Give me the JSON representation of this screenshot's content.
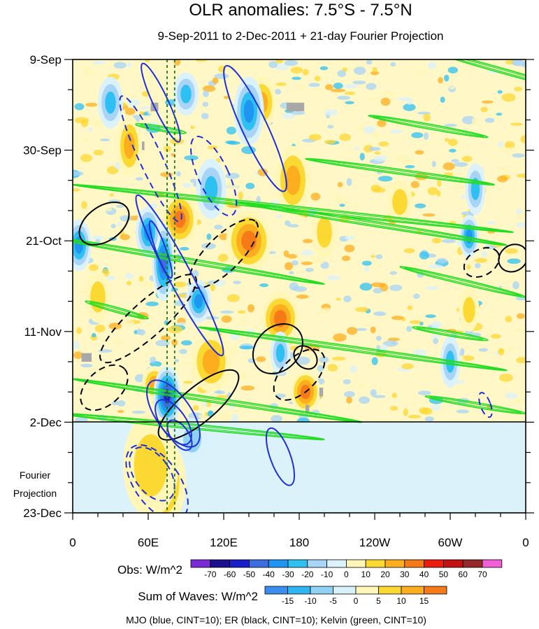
{
  "chart_data": {
    "type": "heatmap",
    "title": "OLR anomalies: 7.5°S - 7.5°N",
    "subtitle": "9-Sep-2011 to 2-Dec-2011 + 21-day Fourier Projection",
    "y_axis": {
      "ticks": [
        "9-Sep",
        "30-Sep",
        "21-Oct",
        "11-Nov",
        "2-Dec",
        "23-Dec"
      ],
      "range_days": [
        0,
        105
      ],
      "tick_days": [
        0,
        21,
        42,
        63,
        84,
        105
      ],
      "minor_every_days": 7
    },
    "x_axis": {
      "ticks": [
        "0",
        "60E",
        "120E",
        "180",
        "120W",
        "60W",
        "0"
      ],
      "tick_lon": [
        0,
        60,
        120,
        180,
        240,
        300,
        360
      ],
      "range_lon": [
        0,
        360
      ],
      "minor_every_deg": 20
    },
    "projection_start_day": 84,
    "projection_label": [
      "Fourier",
      "Projection"
    ],
    "obs_colorbar": {
      "label": "Obs: W/m^2",
      "ticks": [
        "-70",
        "-60",
        "-50",
        "-40",
        "-30",
        "-20",
        "-10",
        "0",
        "10",
        "20",
        "30",
        "40",
        "50",
        "60",
        "70"
      ],
      "colors": [
        "#7a2bd6",
        "#1a0f8c",
        "#1a1fc9",
        "#3b6fe0",
        "#1f96f2",
        "#2fc0f2",
        "#a8d4f7",
        "#dcf2fb",
        "#fff6b8",
        "#fcd833",
        "#fcae1e",
        "#f77a18",
        "#ec1c0e",
        "#c21212",
        "#962a2a",
        "#f25fd6"
      ]
    },
    "waves_colorbar": {
      "label": "Sum of Waves: W/m^2",
      "ticks": [
        "-15",
        "-10",
        "-5",
        "0",
        "5",
        "10",
        "15"
      ],
      "colors": [
        "#3b8ef0",
        "#2fb6f2",
        "#8fd2f5",
        "#d9f1fb",
        "#fff6b8",
        "#fcd833",
        "#fcae1e",
        "#f77a18"
      ]
    },
    "wave_vline_lon": [
      75,
      81
    ],
    "footnote": "MJO (blue, CINT=10); ER (black, CINT=10); Kelvin (green, CINT=10)",
    "series": [
      {
        "name": "MJO",
        "color": "#1f2fd6",
        "contour_interval": 10
      },
      {
        "name": "ER",
        "color": "#000000",
        "contour_interval": 10
      },
      {
        "name": "Kelvin",
        "color": "#22dd22",
        "contour_interval": 10
      }
    ],
    "anomaly_blobs": [
      {
        "lon": 85,
        "day": 37,
        "value": 42,
        "rl": 14,
        "rd": 6
      },
      {
        "lon": 140,
        "day": 42,
        "value": 45,
        "rl": 18,
        "rd": 7
      },
      {
        "lon": 165,
        "day": 60,
        "value": 40,
        "rl": 15,
        "rd": 6
      },
      {
        "lon": 175,
        "day": 28,
        "value": 35,
        "rl": 14,
        "rd": 8
      },
      {
        "lon": 110,
        "day": 70,
        "value": 35,
        "rl": 16,
        "rd": 7
      },
      {
        "lon": 185,
        "day": 77,
        "value": 40,
        "rl": 12,
        "rd": 5
      },
      {
        "lon": 65,
        "day": 75,
        "value": 35,
        "rl": 10,
        "rd": 4
      },
      {
        "lon": 45,
        "day": 20,
        "value": 30,
        "rl": 10,
        "rd": 7
      },
      {
        "lon": 150,
        "day": 10,
        "value": 32,
        "rl": 12,
        "rd": 6
      },
      {
        "lon": 260,
        "day": 33,
        "value": 25,
        "rl": 10,
        "rd": 5
      },
      {
        "lon": 200,
        "day": 40,
        "value": 25,
        "rl": 10,
        "rd": 6
      },
      {
        "lon": 315,
        "day": 58,
        "value": 25,
        "rl": 8,
        "rd": 5
      },
      {
        "lon": 20,
        "day": 55,
        "value": 25,
        "rl": 10,
        "rd": 6
      },
      {
        "lon": 72,
        "day": 47,
        "value": -55,
        "rl": 9,
        "rd": 9
      },
      {
        "lon": 75,
        "day": 78,
        "value": -65,
        "rl": 11,
        "rd": 7
      },
      {
        "lon": 60,
        "day": 40,
        "value": -45,
        "rl": 10,
        "rd": 6
      },
      {
        "lon": 100,
        "day": 56,
        "value": -40,
        "rl": 10,
        "rd": 5
      },
      {
        "lon": 140,
        "day": 12,
        "value": -45,
        "rl": 12,
        "rd": 8
      },
      {
        "lon": 110,
        "day": 30,
        "value": -30,
        "rl": 12,
        "rd": 7
      },
      {
        "lon": 5,
        "day": 43,
        "value": -40,
        "rl": 10,
        "rd": 6
      },
      {
        "lon": 30,
        "day": 10,
        "value": -30,
        "rl": 10,
        "rd": 6
      },
      {
        "lon": 315,
        "day": 41,
        "value": -45,
        "rl": 8,
        "rd": 5
      },
      {
        "lon": 320,
        "day": 30,
        "value": -35,
        "rl": 8,
        "rd": 6
      },
      {
        "lon": 300,
        "day": 70,
        "value": -30,
        "rl": 8,
        "rd": 6
      },
      {
        "lon": 90,
        "day": 8,
        "value": -30,
        "rl": 10,
        "rd": 5
      },
      {
        "lon": 165,
        "day": 68,
        "value": -30,
        "rl": 8,
        "rd": 5
      }
    ],
    "projection_blobs": [
      {
        "lon": 72,
        "day": 98,
        "value": 17,
        "rl": 18,
        "rd": 10
      },
      {
        "lon": 62,
        "day": 94,
        "value": 10,
        "rl": 22,
        "rd": 12
      },
      {
        "lon": 95,
        "day": 88,
        "value": -10,
        "rl": 12,
        "rd": 5
      }
    ],
    "mjo_contours": [
      {
        "lon": 70,
        "day": 10,
        "rl": 6,
        "rd": 10,
        "angle": -25,
        "dash": false
      },
      {
        "lon": 145,
        "day": 16,
        "rl": 10,
        "rd": 16,
        "angle": -25,
        "dash": false
      },
      {
        "lon": 85,
        "day": 50,
        "rl": 9,
        "rd": 21,
        "angle": -28,
        "dash": false
      },
      {
        "lon": 70,
        "day": 44,
        "rl": 4,
        "rd": 7,
        "angle": -20,
        "dash": false
      },
      {
        "lon": 80,
        "day": 82,
        "rl": 14,
        "rd": 9,
        "angle": -35,
        "dash": false
      },
      {
        "lon": 80,
        "day": 84,
        "rl": 10,
        "rd": 6,
        "angle": -35,
        "dash": false
      },
      {
        "lon": 85,
        "day": 87,
        "rl": 7,
        "rd": 4,
        "angle": -35,
        "dash": false
      },
      {
        "lon": 165,
        "day": 92,
        "rl": 8,
        "rd": 7,
        "angle": -20,
        "dash": false
      },
      {
        "lon": 62,
        "day": 23,
        "rl": 9,
        "rd": 16,
        "angle": -25,
        "dash": true
      },
      {
        "lon": 112,
        "day": 27,
        "rl": 12,
        "rd": 10,
        "angle": -25,
        "dash": true
      },
      {
        "lon": 67,
        "day": 98,
        "rl": 18,
        "rd": 10,
        "angle": -35,
        "dash": true
      },
      {
        "lon": 63,
        "day": 96,
        "rl": 14,
        "rd": 7,
        "angle": -35,
        "dash": true
      },
      {
        "lon": 328,
        "day": 80,
        "rl": 4,
        "rd": 3,
        "angle": -20,
        "dash": true
      }
    ],
    "er_contours": [
      {
        "lon": 25,
        "day": 38,
        "rl": 22,
        "rd": 4,
        "angle": -35,
        "dash": false
      },
      {
        "lon": 100,
        "day": 80,
        "rl": 40,
        "rd": 4,
        "angle": -40,
        "dash": false
      },
      {
        "lon": 163,
        "day": 67,
        "rl": 22,
        "rd": 5,
        "angle": -45,
        "dash": false
      },
      {
        "lon": 185,
        "day": 69,
        "rl": 8,
        "rd": 3,
        "angle": -45,
        "dash": false
      },
      {
        "lon": 350,
        "day": 46,
        "rl": 12,
        "rd": 3,
        "angle": -35,
        "dash": false
      },
      {
        "lon": 60,
        "day": 60,
        "rl": 50,
        "rd": 4,
        "angle": -42,
        "dash": true
      },
      {
        "lon": 120,
        "day": 45,
        "rl": 36,
        "rd": 4,
        "angle": -45,
        "dash": true
      },
      {
        "lon": 180,
        "day": 73,
        "rl": 25,
        "rd": 4,
        "angle": -45,
        "dash": true
      },
      {
        "lon": 25,
        "day": 76,
        "rl": 22,
        "rd": 4,
        "angle": -42,
        "dash": true
      },
      {
        "lon": 325,
        "day": 47,
        "rl": 15,
        "rd": 3,
        "angle": -30,
        "dash": true
      }
    ],
    "kelvin_streaks": [
      {
        "lon1": 285,
        "lon2": 395,
        "day1": -2,
        "day2": 7
      },
      {
        "lon1": 375,
        "lon2": 620,
        "day1": 5,
        "day2": 12
      },
      {
        "lon1": 235,
        "lon2": 330,
        "day1": 13,
        "day2": 18
      },
      {
        "lon1": 185,
        "lon2": 335,
        "day1": 23,
        "day2": 29
      },
      {
        "lon1": 0,
        "lon2": 350,
        "day1": 29,
        "day2": 40
      },
      {
        "lon1": 130,
        "lon2": 345,
        "day1": 33,
        "day2": 43
      },
      {
        "lon1": -20,
        "lon2": 200,
        "day1": 41,
        "day2": 52
      },
      {
        "lon1": 260,
        "lon2": 360,
        "day1": 48,
        "day2": 55
      },
      {
        "lon1": 10,
        "lon2": 60,
        "day1": 56,
        "day2": 60
      },
      {
        "lon1": 100,
        "lon2": 345,
        "day1": 62,
        "day2": 72
      },
      {
        "lon1": 0,
        "lon2": 230,
        "day1": 74,
        "day2": 84
      },
      {
        "lon1": 280,
        "lon2": 360,
        "day1": 78,
        "day2": 82
      },
      {
        "lon1": -10,
        "lon2": 200,
        "day1": 82,
        "day2": 88
      },
      {
        "lon1": 50,
        "lon2": 90,
        "day1": 15,
        "day2": 17
      },
      {
        "lon1": 270,
        "lon2": 330,
        "day1": 62,
        "day2": 65
      }
    ],
    "missing_patches": [
      {
        "lon1": 170,
        "lon2": 184,
        "day1": 10,
        "day2": 12
      },
      {
        "lon1": 7,
        "lon2": 15,
        "day1": 68,
        "day2": 70
      },
      {
        "lon1": 62,
        "lon2": 68,
        "day1": 10,
        "day2": 12
      },
      {
        "lon1": 185,
        "lon2": 188,
        "day1": 80,
        "day2": 82
      },
      {
        "lon1": 196,
        "lon2": 199,
        "day1": 76,
        "day2": 78
      },
      {
        "lon1": 55,
        "lon2": 57,
        "day1": 19,
        "day2": 21
      }
    ]
  }
}
